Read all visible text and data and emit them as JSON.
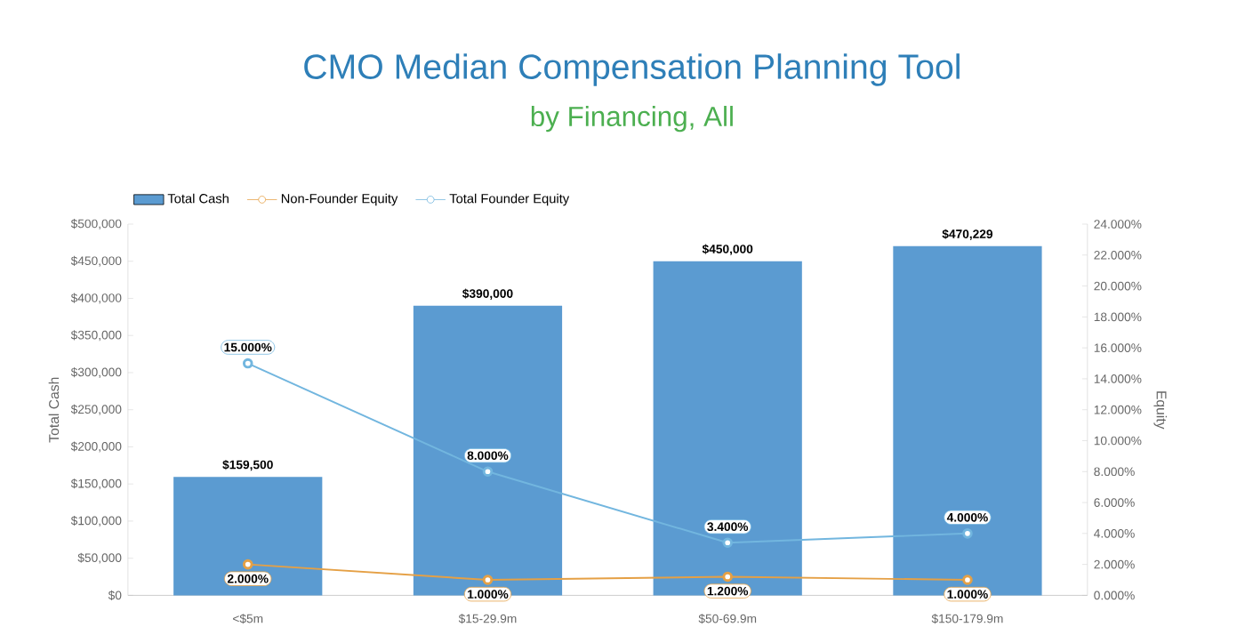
{
  "chart_data": {
    "type": "bar",
    "title": "CMO Median Compensation Planning Tool",
    "subtitle": "by Financing, All",
    "ylabel": "Total Cash",
    "y2label": "Equity",
    "categories": [
      "<$5m",
      "$15-29.9m",
      "$50-69.9m",
      "$150-179.9m"
    ],
    "series": [
      {
        "name": "Total Cash",
        "color": "#5b9bd1",
        "values": [
          159500,
          390000,
          450000,
          470229
        ],
        "value_labels": [
          "$159,500",
          "$390,000",
          "$450,000",
          "$470,229"
        ]
      },
      {
        "name": "Non-Founder Equity",
        "type": "line",
        "axis": "y2",
        "color": "#e5a045",
        "values": [
          2,
          1,
          1.2,
          1
        ],
        "value_labels": [
          "2.000%",
          "1.000%",
          "1.200%",
          "1.000%"
        ]
      },
      {
        "name": "Total Founder Equity",
        "type": "line",
        "axis": "y2",
        "color": "#72b6df",
        "values": [
          15,
          8,
          3.4,
          4
        ],
        "value_labels": [
          "15.000%",
          "8.000%",
          "3.400%",
          "4.000%"
        ]
      }
    ],
    "ylim": [
      0,
      500000
    ],
    "yticks": [
      {
        "value": 0,
        "label": "$0"
      },
      {
        "value": 50000,
        "label": "$50,000"
      },
      {
        "value": 100000,
        "label": "$100,000"
      },
      {
        "value": 150000,
        "label": "$150,000"
      },
      {
        "value": 200000,
        "label": "$200,000"
      },
      {
        "value": 250000,
        "label": "$250,000"
      },
      {
        "value": 300000,
        "label": "$300,000"
      },
      {
        "value": 350000,
        "label": "$350,000"
      },
      {
        "value": 400000,
        "label": "$400,000"
      },
      {
        "value": 450000,
        "label": "$450,000"
      },
      {
        "value": 500000,
        "label": "$500,000"
      }
    ],
    "y2lim": [
      0,
      24
    ],
    "y2ticks": [
      {
        "value": 0,
        "label": "0.000%"
      },
      {
        "value": 2,
        "label": "2.000%"
      },
      {
        "value": 4,
        "label": "4.000%"
      },
      {
        "value": 6,
        "label": "6.000%"
      },
      {
        "value": 8,
        "label": "8.000%"
      },
      {
        "value": 10,
        "label": "10.000%"
      },
      {
        "value": 12,
        "label": "12.000%"
      },
      {
        "value": 14,
        "label": "14.000%"
      },
      {
        "value": 16,
        "label": "16.000%"
      },
      {
        "value": 18,
        "label": "18.000%"
      },
      {
        "value": 20,
        "label": "20.000%"
      },
      {
        "value": 22,
        "label": "22.000%"
      },
      {
        "value": 24,
        "label": "24.000%"
      }
    ],
    "legend": "top left",
    "marker": "circle",
    "grid": false
  }
}
